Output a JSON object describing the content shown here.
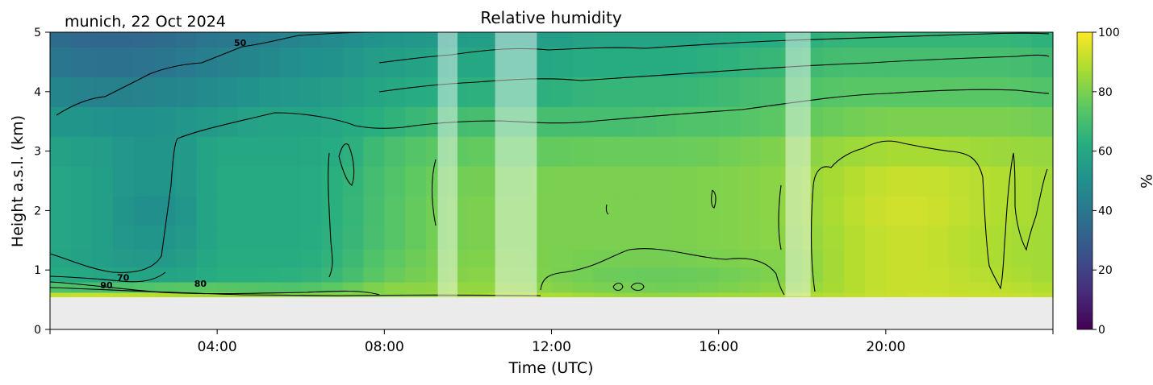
{
  "chart_data": {
    "type": "heatmap",
    "title": "Relative humidity",
    "subtitle": "munich, 22 Oct 2024",
    "xlabel": "Time (UTC)",
    "ylabel": "Height a.s.l. (km)",
    "x_unit": "hours UTC",
    "xlim": [
      0,
      24
    ],
    "ylim": [
      0,
      5
    ],
    "x_ticks": [
      {
        "value": 4,
        "label": "04:00"
      },
      {
        "value": 8,
        "label": "08:00"
      },
      {
        "value": 12,
        "label": "12:00"
      },
      {
        "value": 16,
        "label": "16:00"
      },
      {
        "value": 20,
        "label": "20:00"
      }
    ],
    "y_ticks": [
      {
        "value": 0,
        "label": "0"
      },
      {
        "value": 1,
        "label": "1"
      },
      {
        "value": 2,
        "label": "2"
      },
      {
        "value": 3,
        "label": "3"
      },
      {
        "value": 4,
        "label": "4"
      },
      {
        "value": 5,
        "label": "5"
      }
    ],
    "colorbar": {
      "label": "%",
      "colormap": "viridis",
      "range": [
        0,
        100
      ],
      "ticks": [
        {
          "value": 0,
          "label": "0"
        },
        {
          "value": 20,
          "label": "20"
        },
        {
          "value": 40,
          "label": "40"
        },
        {
          "value": 60,
          "label": "60"
        },
        {
          "value": 80,
          "label": "80"
        },
        {
          "value": 100,
          "label": "100"
        }
      ]
    },
    "data_bottom_km": 0.55,
    "grid_x_hours": [
      0,
      1,
      2,
      3,
      4,
      5,
      6,
      7,
      8,
      9,
      10,
      11,
      12,
      13,
      14,
      15,
      16,
      17,
      18,
      19,
      20,
      21,
      22,
      23,
      24
    ],
    "grid_y_km": [
      0.55,
      0.7,
      0.9,
      1.2,
      1.5,
      2.0,
      2.5,
      3.0,
      3.5,
      4.0,
      4.5,
      5.0
    ],
    "rh_values": [
      [
        90,
        92,
        90,
        88,
        86,
        84,
        82,
        82,
        82,
        84,
        86,
        88,
        88,
        86,
        84,
        84,
        86,
        86,
        88,
        90,
        92,
        93,
        92,
        92,
        90
      ],
      [
        72,
        70,
        72,
        74,
        74,
        73,
        72,
        76,
        82,
        83,
        84,
        84,
        82,
        80,
        79,
        78,
        80,
        82,
        84,
        88,
        92,
        92,
        91,
        90,
        88
      ],
      [
        62,
        60,
        58,
        58,
        63,
        63,
        64,
        68,
        76,
        80,
        82,
        82,
        80,
        78,
        77,
        77,
        78,
        80,
        82,
        88,
        92,
        92,
        90,
        88,
        86
      ],
      [
        60,
        57,
        54,
        54,
        62,
        62,
        62,
        66,
        74,
        79,
        81,
        81,
        80,
        79,
        79,
        79,
        80,
        81,
        82,
        88,
        92,
        92,
        89,
        87,
        86
      ],
      [
        60,
        58,
        52,
        52,
        61,
        61,
        61,
        65,
        72,
        78,
        80,
        80,
        80,
        80,
        80,
        80,
        81,
        82,
        83,
        88,
        92,
        92,
        89,
        87,
        86
      ],
      [
        60,
        58,
        50,
        50,
        61,
        61,
        61,
        64,
        72,
        78,
        80,
        80,
        80,
        80,
        80,
        80,
        81,
        82,
        84,
        89,
        93,
        93,
        90,
        88,
        86
      ],
      [
        60,
        58,
        52,
        52,
        61,
        61,
        61,
        64,
        71,
        77,
        79,
        79,
        80,
        80,
        80,
        80,
        81,
        82,
        84,
        88,
        92,
        92,
        90,
        88,
        86
      ],
      [
        58,
        56,
        52,
        52,
        60,
        60,
        60,
        62,
        70,
        74,
        76,
        76,
        76,
        77,
        77,
        77,
        78,
        80,
        82,
        85,
        87,
        87,
        86,
        85,
        84
      ],
      [
        52,
        52,
        50,
        52,
        55,
        58,
        58,
        60,
        64,
        68,
        70,
        70,
        70,
        70,
        70,
        72,
        72,
        74,
        76,
        78,
        80,
        80,
        80,
        80,
        78
      ],
      [
        46,
        44,
        44,
        46,
        48,
        52,
        54,
        56,
        60,
        62,
        64,
        64,
        64,
        66,
        66,
        66,
        68,
        70,
        72,
        74,
        74,
        74,
        74,
        74,
        72
      ],
      [
        40,
        38,
        38,
        40,
        44,
        46,
        50,
        52,
        56,
        58,
        60,
        60,
        60,
        62,
        62,
        62,
        64,
        66,
        68,
        70,
        70,
        70,
        70,
        70,
        68
      ],
      [
        36,
        34,
        34,
        36,
        40,
        42,
        46,
        48,
        52,
        54,
        56,
        56,
        56,
        58,
        58,
        58,
        60,
        62,
        64,
        66,
        66,
        66,
        66,
        66,
        64
      ]
    ],
    "contour_labels": [
      {
        "text": "50",
        "x": 4.55,
        "y": 4.77
      },
      {
        "text": "70",
        "x": 1.75,
        "y": 0.82
      },
      {
        "text": "90",
        "x": 1.35,
        "y": 0.69
      },
      {
        "text": "80",
        "x": 3.6,
        "y": 0.72
      }
    ],
    "masked_periods_hours": [
      [
        9.28,
        9.75
      ],
      [
        10.65,
        11.65
      ],
      [
        17.6,
        18.2
      ]
    ]
  }
}
